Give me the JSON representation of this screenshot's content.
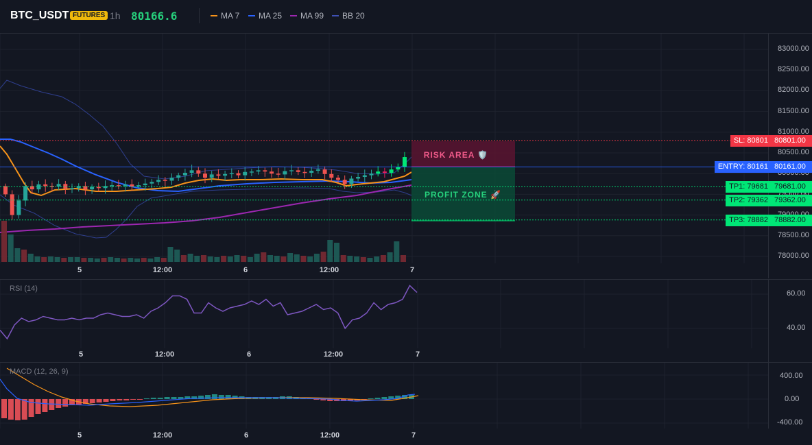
{
  "header": {
    "symbol": "BTC_USDT",
    "market_badge": "FUTURES",
    "timeframe": "1h",
    "last_price": "80166.6",
    "indicators": [
      {
        "label": "MA 7",
        "color": "#f7931a"
      },
      {
        "label": "MA 25",
        "color": "#2962ff"
      },
      {
        "label": "MA 99",
        "color": "#9c27b0"
      },
      {
        "label": "BB 20",
        "color": "#3f51b5"
      }
    ]
  },
  "colors": {
    "up": "#26a69a",
    "up_bright": "#00e676",
    "down": "#ef5350",
    "down_bright": "#e91e63",
    "background": "#131722",
    "grid": "#1e222d",
    "sl": "#f23645",
    "entry": "#2962ff",
    "tp": "#00e676"
  },
  "main_chart": {
    "y_axis_labels": [
      "83000.00",
      "82500.00",
      "82000.00",
      "81500.00",
      "81000.00",
      "80500.00",
      "80000.00",
      "79500.00",
      "79000.00",
      "78500.00",
      "78000.00"
    ],
    "x_axis_labels": [
      "5",
      "12:00",
      "6",
      "12:00",
      "7"
    ],
    "risk_zone_label": "RISK AREA 🛡️",
    "profit_zone_label": "PROFIT ZONE 🚀",
    "levels": [
      {
        "id": "sl",
        "tag": "SL: 80801",
        "value": "80801.00",
        "price": 80801,
        "color": "#f23645"
      },
      {
        "id": "entry",
        "tag": "ENTRY: 80161",
        "value": "80161.00",
        "price": 80161,
        "color": "#2962ff"
      },
      {
        "id": "tp1",
        "tag": "TP1: 79681",
        "value": "79681.00",
        "price": 79681,
        "color": "#00e676"
      },
      {
        "id": "tp2",
        "tag": "TP2: 79362",
        "value": "79362.00",
        "price": 79362,
        "color": "#00e676"
      },
      {
        "id": "tp3",
        "tag": "TP3: 78882",
        "value": "78882.00",
        "price": 78882,
        "color": "#00e676"
      }
    ]
  },
  "rsi": {
    "title": "RSI (14)",
    "y_axis_labels": [
      "60.00",
      "40.00"
    ],
    "x_axis_labels": [
      "5",
      "12:00",
      "6",
      "12:00",
      "7"
    ],
    "values": [
      39,
      34,
      42,
      46,
      44,
      45,
      47,
      46,
      45,
      45,
      46,
      45,
      46,
      46,
      48,
      49,
      48,
      47,
      47,
      48,
      46,
      50,
      52,
      55,
      59,
      59,
      57,
      49,
      49,
      55,
      52,
      50,
      52,
      53,
      54,
      56,
      54,
      57,
      53,
      55,
      48,
      49,
      50,
      52,
      54,
      51,
      52,
      49,
      40,
      45,
      46,
      49,
      55,
      51,
      54,
      55,
      57,
      65,
      61
    ]
  },
  "macd": {
    "title": "MACD (12, 26, 9)",
    "y_axis_labels": [
      "400.00",
      "0.00",
      "-400.00"
    ],
    "x_axis_labels": [
      "5",
      "12:00",
      "6",
      "12:00",
      "7"
    ]
  }
}
